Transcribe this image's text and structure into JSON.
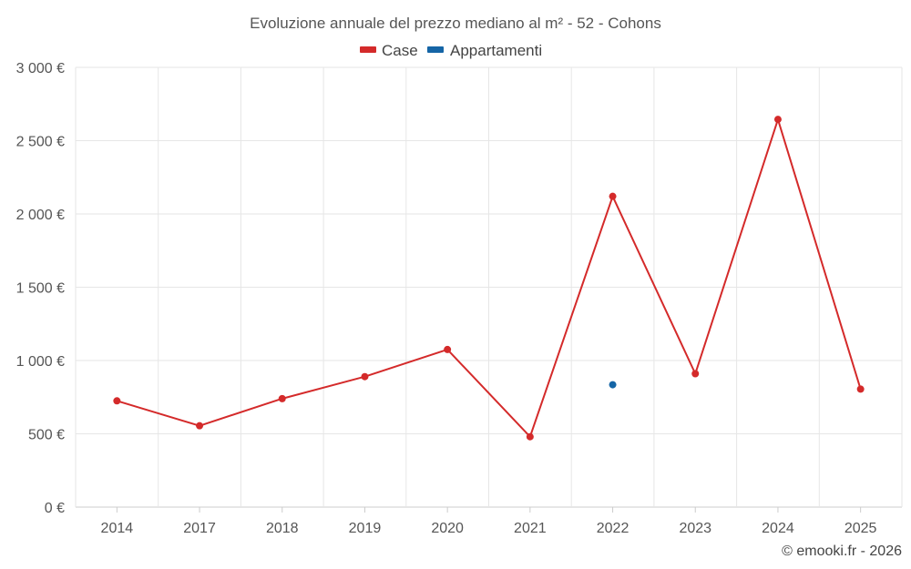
{
  "chart_data": {
    "type": "line",
    "title": "Evoluzione annuale del prezzo mediano al m² - 52 - Cohons",
    "categories": [
      "2014",
      "2017",
      "2018",
      "2019",
      "2020",
      "2021",
      "2022",
      "2023",
      "2024",
      "2025"
    ],
    "ylim": [
      0,
      3000
    ],
    "yticks": [
      0,
      500,
      1000,
      1500,
      2000,
      2500,
      3000
    ],
    "ytick_labels": [
      "0 €",
      "500 €",
      "1 000 €",
      "1 500 €",
      "2 000 €",
      "2 500 €",
      "3 000 €"
    ],
    "xlabel": "",
    "ylabel": "",
    "grid": true,
    "legend_position": "top-center",
    "series": [
      {
        "name": "Case",
        "color": "#d42a2a",
        "values": [
          725,
          555,
          740,
          890,
          1075,
          480,
          2120,
          910,
          2645,
          805
        ]
      },
      {
        "name": "Appartamenti",
        "color": "#1565a6",
        "values": [
          null,
          null,
          null,
          null,
          null,
          null,
          835,
          null,
          null,
          null
        ]
      }
    ],
    "credit": "© emooki.fr - 2026"
  }
}
